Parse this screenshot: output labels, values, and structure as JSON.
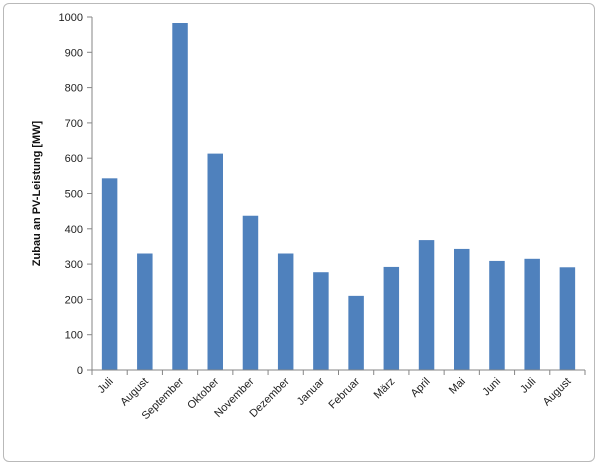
{
  "chart_data": {
    "type": "bar",
    "title": "",
    "xlabel": "",
    "ylabel": "Zubau an PV-Leistung [MW]",
    "ylim": [
      0,
      1000
    ],
    "yticks": [
      0,
      100,
      200,
      300,
      400,
      500,
      600,
      700,
      800,
      900,
      1000
    ],
    "grid": false,
    "legend": "none",
    "bar_color": "#4f81bd",
    "categories": [
      "Juli",
      "August",
      "September",
      "Oktober",
      "November",
      "Dezember",
      "Januar",
      "Februar",
      "März",
      "April",
      "Mai",
      "Juni",
      "Juli",
      "August"
    ],
    "values": [
      543,
      330,
      983,
      613,
      437,
      330,
      277,
      210,
      292,
      368,
      343,
      309,
      315,
      291
    ]
  }
}
